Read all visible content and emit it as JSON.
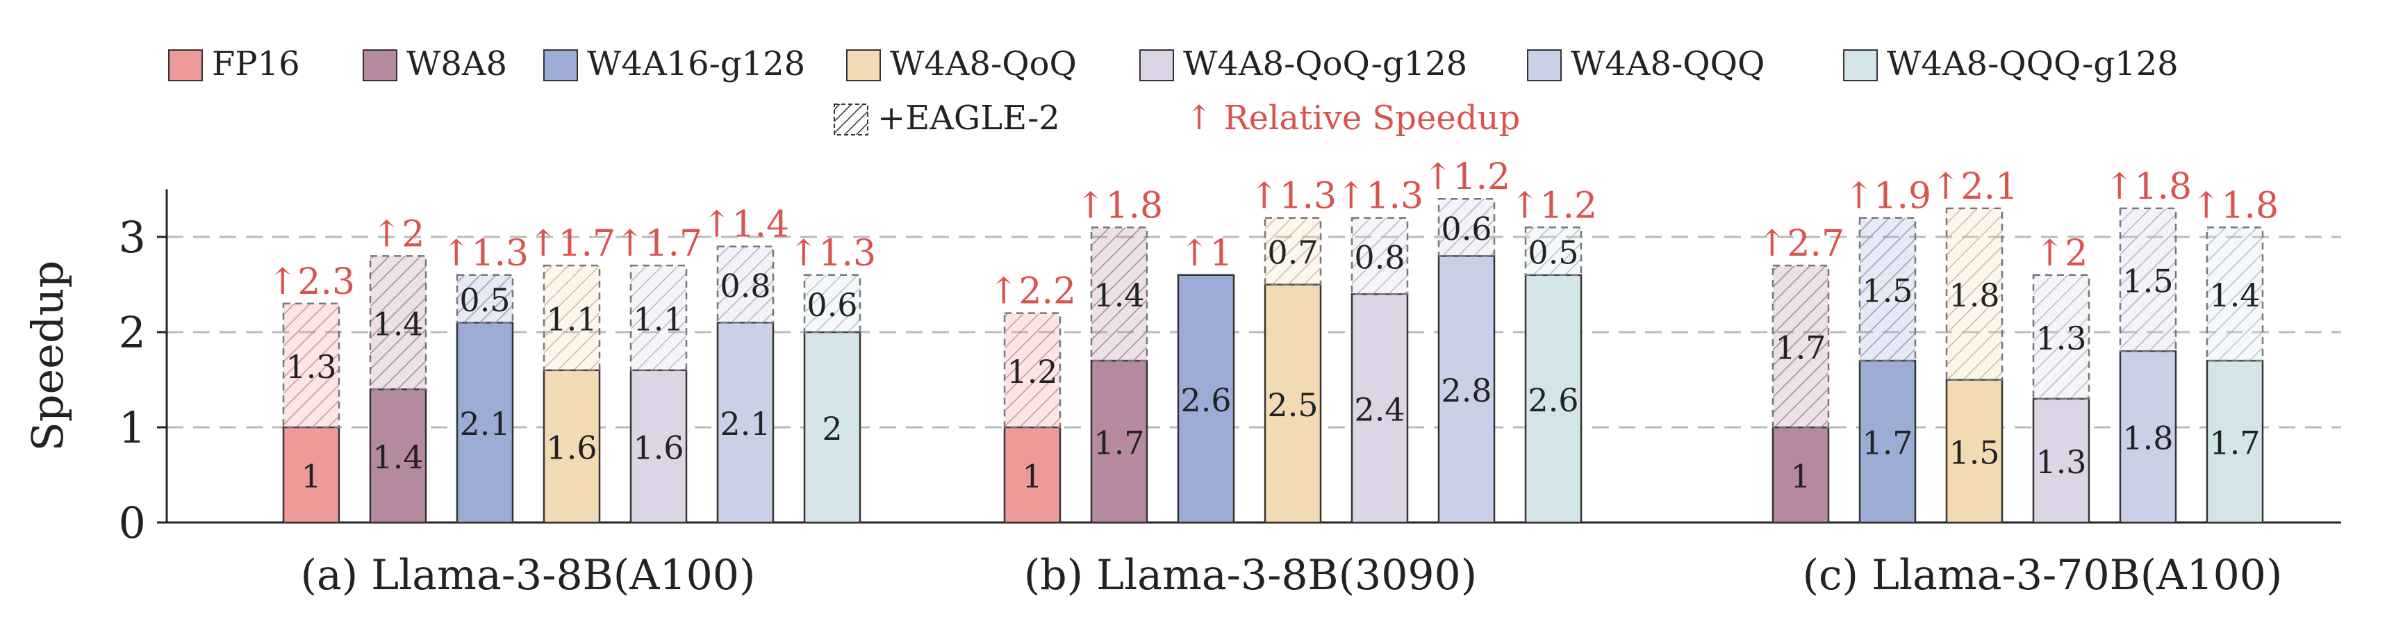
{
  "chart_data": {
    "type": "bar",
    "ylabel": "Speedup",
    "ylim": [
      0,
      3.5
    ],
    "yticks": [
      0,
      1,
      2,
      3
    ],
    "grid": "dashed-horizontal",
    "legend_position": "top",
    "legend": [
      {
        "name": "FP16",
        "color": "#EE9A98"
      },
      {
        "name": "W8A8",
        "color": "#B5899F"
      },
      {
        "name": "W4A16-g128",
        "color": "#9CACD4"
      },
      {
        "name": "W4A8-QoQ",
        "color": "#F2DAB5"
      },
      {
        "name": "W4A8-QoQ-g128",
        "color": "#DCD5E6"
      },
      {
        "name": "W4A8-QQQ",
        "color": "#CAD1E6"
      },
      {
        "name": "W4A8-QQQ-g128",
        "color": "#D4E5EA"
      }
    ],
    "eagle_legend": "+EAGLE-2",
    "speedup_legend": "↑ Relative Speedup",
    "groups": [
      {
        "label": "(a) Llama-3-8B(A100)",
        "bars": [
          {
            "series": "FP16",
            "base": 1,
            "eagle": 1.3,
            "relative": "↑2.3"
          },
          {
            "series": "W8A8",
            "base": 1.4,
            "eagle": 1.4,
            "relative": "↑2"
          },
          {
            "series": "W4A16-g128",
            "base": 2.1,
            "eagle": 0.5,
            "relative": "↑1.3"
          },
          {
            "series": "W4A8-QoQ",
            "base": 1.6,
            "eagle": 1.1,
            "relative": "↑1.7"
          },
          {
            "series": "W4A8-QoQ-g128",
            "base": 1.6,
            "eagle": 1.1,
            "relative": "↑1.7"
          },
          {
            "series": "W4A8-QQQ",
            "base": 2.1,
            "eagle": 0.8,
            "relative": "↑1.4"
          },
          {
            "series": "W4A8-QQQ-g128",
            "base": 2,
            "eagle": 0.6,
            "relative": "↑1.3"
          }
        ]
      },
      {
        "label": "(b) Llama-3-8B(3090)",
        "bars": [
          {
            "series": "FP16",
            "base": 1,
            "eagle": 1.2,
            "relative": "↑2.2"
          },
          {
            "series": "W8A8",
            "base": 1.7,
            "eagle": 1.4,
            "relative": "↑1.8"
          },
          {
            "series": "W4A16-g128",
            "base": 2.6,
            "eagle": null,
            "relative": "↑1"
          },
          {
            "series": "W4A8-QoQ",
            "base": 2.5,
            "eagle": 0.7,
            "relative": "↑1.3"
          },
          {
            "series": "W4A8-QoQ-g128",
            "base": 2.4,
            "eagle": 0.8,
            "relative": "↑1.3"
          },
          {
            "series": "W4A8-QQQ",
            "base": 2.8,
            "eagle": 0.6,
            "relative": "↑1.2"
          },
          {
            "series": "W4A8-QQQ-g128",
            "base": 2.6,
            "eagle": 0.5,
            "relative": "↑1.2"
          }
        ]
      },
      {
        "label": "(c) Llama-3-70B(A100)",
        "bars": [
          {
            "series": "W8A8",
            "base": 1,
            "eagle": 1.7,
            "relative": "↑2.7"
          },
          {
            "series": "W4A16-g128",
            "base": 1.7,
            "eagle": 1.5,
            "relative": "↑1.9"
          },
          {
            "series": "W4A8-QoQ",
            "base": 1.5,
            "eagle": 1.8,
            "relative": "↑2.1"
          },
          {
            "series": "W4A8-QoQ-g128",
            "base": 1.3,
            "eagle": 1.3,
            "relative": "↑2"
          },
          {
            "series": "W4A8-QQQ",
            "base": 1.8,
            "eagle": 1.5,
            "relative": "↑1.8"
          },
          {
            "series": "W4A8-QQQ-g128",
            "base": 1.7,
            "eagle": 1.4,
            "relative": "↑1.8"
          }
        ]
      }
    ]
  }
}
